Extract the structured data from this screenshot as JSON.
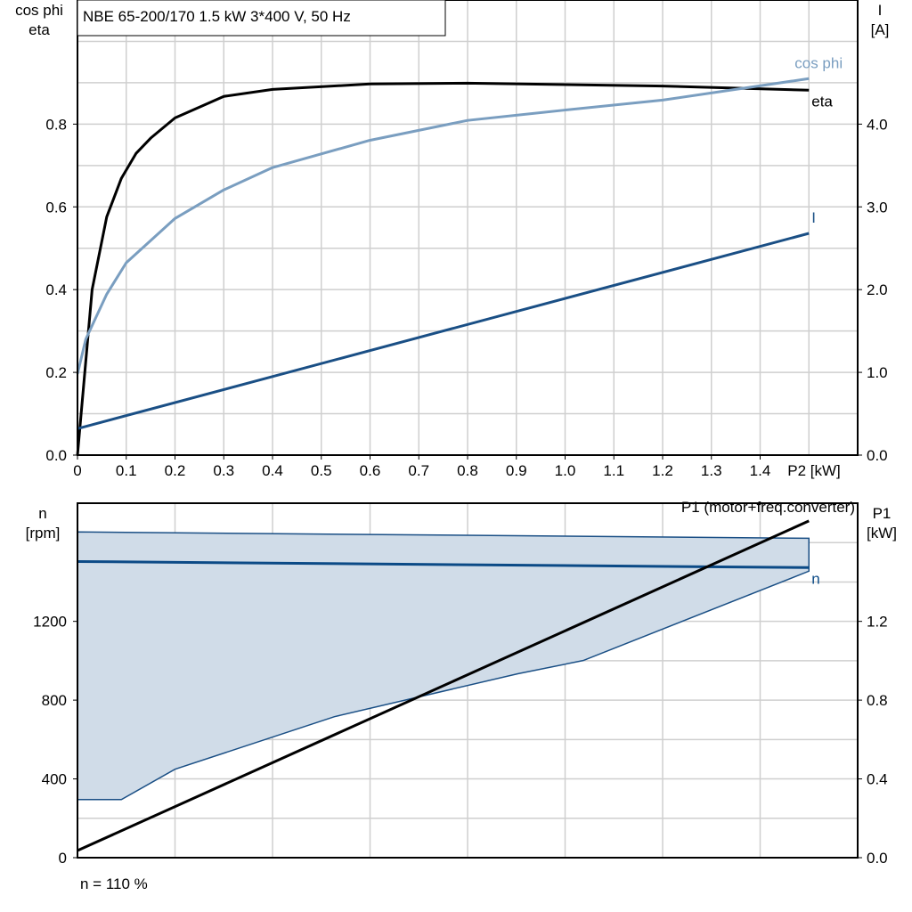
{
  "chart_data": [
    {
      "type": "line",
      "title": "NBE 65-200/170   1.5 kW   3*400 V, 50 Hz",
      "xlabel": "P2 [kW]",
      "ylabel_left": [
        "cos phi",
        "eta"
      ],
      "ylabel_right": [
        "I",
        "[A]"
      ],
      "xlim": [
        0,
        1.6
      ],
      "ylim_left": [
        0,
        1.1
      ],
      "ylim_right": [
        0,
        5.5
      ],
      "x_ticks": [
        "0",
        "0.1",
        "0.2",
        "0.3",
        "0.4",
        "0.5",
        "0.6",
        "0.7",
        "0.8",
        "0.9",
        "1.0",
        "1.1",
        "1.2",
        "1.3",
        "1.4"
      ],
      "y_left_ticks": [
        "0.0",
        "0.2",
        "0.4",
        "0.6",
        "0.8"
      ],
      "y_right_ticks": [
        "0.0",
        "1.0",
        "2.0",
        "3.0",
        "4.0"
      ],
      "grid": true,
      "series": [
        {
          "name": "eta",
          "axis": "left",
          "color": "#000000",
          "x": [
            0,
            0.03,
            0.06,
            0.09,
            0.12,
            0.15,
            0.2,
            0.3,
            0.4,
            0.6,
            0.8,
            1.2,
            1.5
          ],
          "y": [
            0,
            0.4,
            0.576,
            0.669,
            0.729,
            0.766,
            0.815,
            0.867,
            0.884,
            0.897,
            0.899,
            0.892,
            0.882
          ]
        },
        {
          "name": "cos phi",
          "axis": "left",
          "color": "#7a9ec0",
          "x": [
            0,
            0.017,
            0.06,
            0.1,
            0.2,
            0.3,
            0.4,
            0.6,
            0.8,
            1.0,
            1.2,
            1.5
          ],
          "y": [
            0.196,
            0.28,
            0.389,
            0.465,
            0.572,
            0.641,
            0.695,
            0.761,
            0.809,
            0.834,
            0.858,
            0.91
          ]
        },
        {
          "name": "I",
          "axis": "right",
          "color": "#1a4f85",
          "x": [
            0,
            1.5
          ],
          "y": [
            0.32,
            2.68
          ]
        }
      ]
    },
    {
      "type": "area",
      "footer": "n = 110 %",
      "ylabel_left": [
        "n",
        "[rpm]"
      ],
      "ylabel_right": [
        "P1",
        "[kW]"
      ],
      "xlim": [
        0,
        1.6
      ],
      "ylim_left": [
        0,
        1800
      ],
      "ylim_right": [
        0,
        1.8
      ],
      "y_left_ticks": [
        "0",
        "400",
        "800",
        "1200"
      ],
      "y_right_ticks": [
        "0.0",
        "0.4",
        "0.8",
        "1.2"
      ],
      "grid": true,
      "range_area": {
        "color": "#d0dce8",
        "edge": "#1a4f85",
        "upper": {
          "x": [
            0,
            1.5
          ],
          "y": [
            1654,
            1622
          ]
        },
        "lower": {
          "x": [
            0,
            0.09,
            0.2,
            0.527,
            0.903,
            1.037,
            1.5
          ],
          "y": [
            295,
            295,
            449,
            716,
            934,
            1001,
            1455
          ]
        }
      },
      "series": [
        {
          "name": "n",
          "axis": "left",
          "color": "#0b4a86",
          "x": [
            0,
            1.5
          ],
          "y": [
            1504,
            1473
          ]
        },
        {
          "name": "P1 (motor+freq.converter)",
          "axis": "right",
          "color": "#000000",
          "x": [
            0,
            1.5
          ],
          "y": [
            0.036,
            1.71
          ]
        }
      ]
    }
  ]
}
